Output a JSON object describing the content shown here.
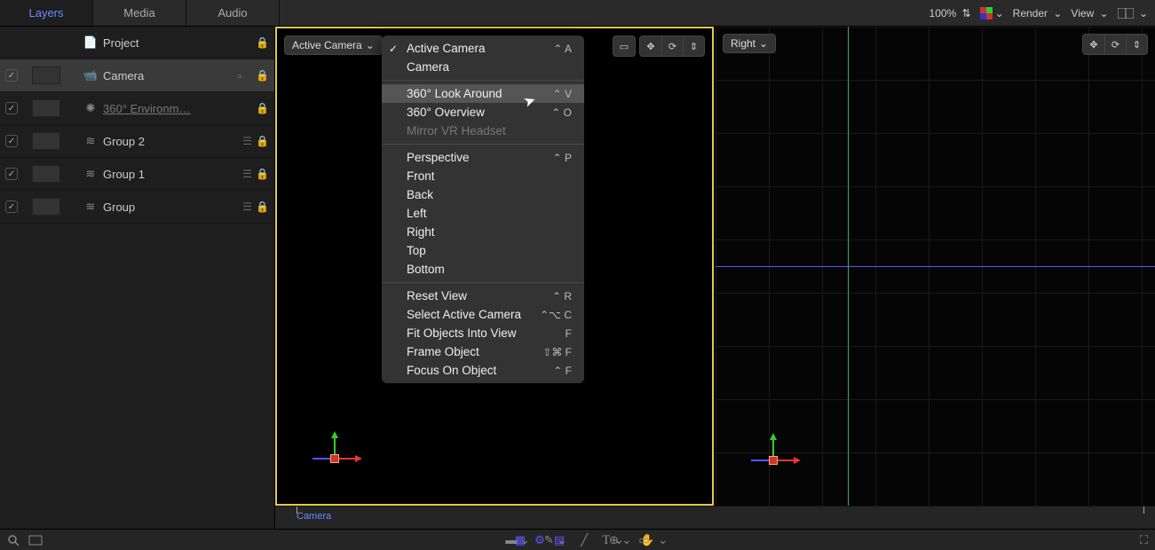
{
  "tabs": {
    "layers": "Layers",
    "media": "Media",
    "audio": "Audio",
    "active": 0
  },
  "top_right": {
    "zoom": "100%",
    "render": "Render",
    "view": "View"
  },
  "layers": [
    {
      "name": "Project",
      "checked": false,
      "showCheck": false,
      "icon": "doc",
      "indent": 1
    },
    {
      "name": "Camera",
      "checked": true,
      "icon": "cam",
      "indent": 1,
      "selected": true,
      "thumb": true,
      "extra": true
    },
    {
      "name": "360° Environm…",
      "checked": true,
      "icon": "env",
      "indent": 1,
      "dim": true,
      "thumb": true
    },
    {
      "name": "Group 2",
      "checked": true,
      "icon": "grp",
      "indent": 1,
      "thumb": true,
      "stack": true
    },
    {
      "name": "Group 1",
      "checked": true,
      "icon": "grp",
      "indent": 1,
      "thumb": true,
      "stack": true
    },
    {
      "name": "Group",
      "checked": true,
      "icon": "grp",
      "indent": 1,
      "thumb": true,
      "stack": true
    }
  ],
  "view_dropdown_left": "Active Camera",
  "view_dropdown_right": "Right",
  "menu": {
    "groups": [
      [
        {
          "label": "Active Camera",
          "shortcut": "⌃ A",
          "checked": true
        },
        {
          "label": "Camera"
        }
      ],
      [
        {
          "label": "360° Look Around",
          "shortcut": "⌃ V",
          "highlight": true
        },
        {
          "label": "360° Overview",
          "shortcut": "⌃ O"
        },
        {
          "label": "Mirror VR Headset",
          "disabled": true
        }
      ],
      [
        {
          "label": "Perspective",
          "shortcut": "⌃ P"
        },
        {
          "label": "Front"
        },
        {
          "label": "Back"
        },
        {
          "label": "Left"
        },
        {
          "label": "Right"
        },
        {
          "label": "Top"
        },
        {
          "label": "Bottom"
        }
      ],
      [
        {
          "label": "Reset View",
          "shortcut": "⌃ R"
        },
        {
          "label": "Select Active Camera",
          "shortcut": "⌃⌥ C"
        },
        {
          "label": "Fit Objects Into View",
          "shortcut": "F"
        },
        {
          "label": "Frame Object",
          "shortcut": "⇧⌘ F"
        },
        {
          "label": "Focus On Object",
          "shortcut": "⌃ F"
        }
      ]
    ]
  },
  "timeline": {
    "label": "Camera"
  },
  "colors": {
    "accent": "#6a8cff",
    "selection_border": "#e6c84a"
  }
}
